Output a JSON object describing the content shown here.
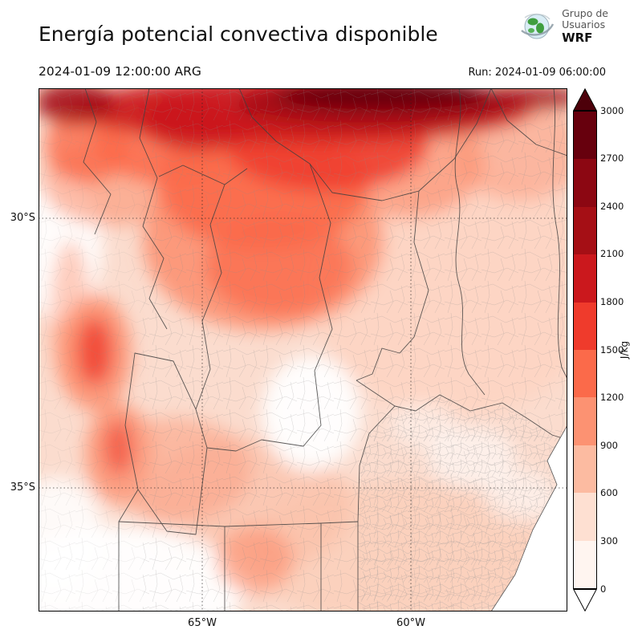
{
  "header": {
    "title": "Energía potencial convectiva disponible",
    "valid_time": "2024-01-09 12:00:00 ARG",
    "run_label": "Run: 2024-01-09 06:00:00",
    "logo": {
      "line1": "Grupo de",
      "line2": "Usuarios",
      "line3": "WRF"
    }
  },
  "map": {
    "lat_labels": {
      "lat30": "30°S",
      "lat35": "35°S"
    },
    "lon_labels": {
      "lon65": "65°W",
      "lon60": "60°W"
    }
  },
  "colorbar": {
    "unit": "J/kg",
    "ticks": [
      "3000",
      "2700",
      "2400",
      "2100",
      "1800",
      "1500",
      "1200",
      "900",
      "600",
      "300",
      "0"
    ],
    "colors_top_to_bottom": [
      "#67000d",
      "#8c0712",
      "#a50f15",
      "#cb181d",
      "#ef3b2c",
      "#fb6a4a",
      "#fc9272",
      "#fcbba1",
      "#fee0d2",
      "#fff5f0"
    ],
    "extend_over_color": "#4d000a",
    "extend_under_color": "#ffffff"
  },
  "chart_data": {
    "type": "heatmap",
    "title": "Energía potencial convectiva disponible",
    "units": "J/kg",
    "scale_min": 0,
    "scale_max": 3000,
    "scale_step": 300,
    "colormap": "Reds",
    "graticule": {
      "lat": [
        "30°S",
        "35°S"
      ],
      "lon": [
        "65°W",
        "60°W"
      ]
    },
    "features": [
      "CAPE maximum band >3000 J/kg along the northern edge of the domain",
      "secondary maxima ~1200-1800 J/kg over central-west sierras near 32-35°S, 66-67°W",
      "broad 300-900 J/kg field over the east and over Buenos Aires province",
      "near-zero CAPE over the Andes strip in the west, the south-west corner and a central pocket near 33.5°S 64°W"
    ]
  }
}
